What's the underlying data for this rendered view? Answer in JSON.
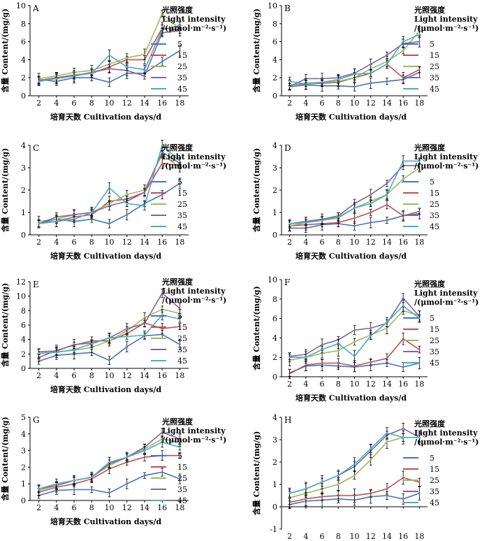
{
  "chart_data": [
    {
      "type": "line",
      "panel_label": "A",
      "ylabel": "含量 Content/(mg/g)",
      "xlabel": "培育天数 Cultivation days/d",
      "legend_title": [
        "光照强度",
        "Light intensity",
        "/(μmol·m⁻²·s⁻¹)"
      ],
      "x": [
        2,
        4,
        6,
        8,
        10,
        12,
        14,
        16,
        18
      ],
      "xlim": [
        1,
        19
      ],
      "ylim": [
        0,
        10
      ],
      "yticks": [
        0,
        2,
        4,
        6,
        8,
        10
      ],
      "series": [
        {
          "name": "5",
          "color": "#4472C4",
          "values": [
            1.8,
            1.6,
            2.0,
            2.0,
            1.5,
            2.5,
            2.5,
            3.8,
            5.0
          ]
        },
        {
          "name": "15",
          "color": "#C0504D",
          "values": [
            1.7,
            2.0,
            2.3,
            2.5,
            3.2,
            4.0,
            4.0,
            7.5,
            7.3
          ]
        },
        {
          "name": "25",
          "color": "#9BBB59",
          "values": [
            1.9,
            2.2,
            2.6,
            2.8,
            3.5,
            4.2,
            4.6,
            9.1,
            7.4
          ]
        },
        {
          "name": "35",
          "color": "#8064A2",
          "values": [
            1.7,
            1.9,
            2.2,
            2.6,
            3.0,
            2.8,
            2.2,
            7.0,
            7.2
          ]
        },
        {
          "name": "45",
          "color": "#4BACC6",
          "values": [
            1.6,
            1.9,
            2.2,
            2.5,
            4.5,
            3.2,
            2.9,
            7.3,
            7.8
          ]
        }
      ]
    },
    {
      "type": "line",
      "panel_label": "B",
      "ylabel": "含量 Content/(mg/g)",
      "xlabel": "培育天数 Cultivation days/d",
      "legend_title": [
        "光照强度",
        "Light intensity",
        "/(μmol·m⁻²·s⁻¹)"
      ],
      "x": [
        2,
        4,
        6,
        8,
        10,
        12,
        14,
        16,
        18
      ],
      "xlim": [
        1,
        19
      ],
      "ylim": [
        0,
        10
      ],
      "yticks": [
        0,
        2,
        4,
        6,
        8,
        10
      ],
      "series": [
        {
          "name": "5",
          "color": "#4472C4",
          "values": [
            1.0,
            1.2,
            1.1,
            1.1,
            1.0,
            1.4,
            1.6,
            1.8,
            2.6
          ]
        },
        {
          "name": "15",
          "color": "#C0504D",
          "values": [
            1.2,
            1.3,
            1.4,
            1.5,
            2.0,
            2.5,
            3.5,
            2.0,
            2.9
          ]
        },
        {
          "name": "25",
          "color": "#9BBB59",
          "values": [
            1.2,
            1.4,
            1.5,
            1.6,
            2.0,
            3.0,
            3.8,
            5.0,
            7.2
          ]
        },
        {
          "name": "35",
          "color": "#8064A2",
          "values": [
            1.0,
            1.9,
            1.9,
            2.0,
            2.5,
            3.5,
            4.5,
            5.8,
            6.0
          ]
        },
        {
          "name": "45",
          "color": "#4BACC6",
          "values": [
            1.6,
            1.3,
            1.5,
            1.8,
            2.4,
            2.5,
            3.5,
            6.0,
            6.8
          ]
        }
      ]
    },
    {
      "type": "line",
      "panel_label": "C",
      "ylabel": "含量 Content/(mg/g)",
      "xlabel": "培育天数 Cultivation days/d",
      "legend_title": [
        "光照强度",
        "Light intensity",
        "/(μmol·m⁻²·s⁻¹)"
      ],
      "x": [
        2,
        4,
        6,
        8,
        10,
        12,
        14,
        16,
        18
      ],
      "xlim": [
        1,
        19
      ],
      "ylim": [
        0,
        4
      ],
      "yticks": [
        0,
        1,
        2,
        3,
        4
      ],
      "series": [
        {
          "name": "5",
          "color": "#4472C4",
          "values": [
            0.5,
            0.7,
            0.6,
            0.7,
            0.5,
            0.9,
            1.4,
            1.8,
            2.3
          ]
        },
        {
          "name": "15",
          "color": "#C0504D",
          "values": [
            0.5,
            0.6,
            0.8,
            0.9,
            1.5,
            1.6,
            1.9,
            3.2,
            3.1
          ]
        },
        {
          "name": "25",
          "color": "#9BBB59",
          "values": [
            0.6,
            0.7,
            0.9,
            1.0,
            1.4,
            1.8,
            2.0,
            3.6,
            3.0
          ]
        },
        {
          "name": "35",
          "color": "#8064A2",
          "values": [
            0.5,
            0.8,
            0.9,
            1.0,
            1.3,
            1.5,
            1.9,
            3.7,
            3.2
          ]
        },
        {
          "name": "45",
          "color": "#4BACC6",
          "values": [
            0.5,
            0.6,
            0.7,
            1.0,
            2.1,
            1.4,
            1.3,
            4.0,
            3.3
          ]
        }
      ]
    },
    {
      "type": "line",
      "panel_label": "D",
      "ylabel": "含量 Content/(mg/g)",
      "xlabel": "培育天数 Cultivation days/d",
      "legend_title": [
        "光照强度",
        "Light intensity",
        "/(μmol·m⁻²·s⁻¹)"
      ],
      "x": [
        2,
        4,
        6,
        8,
        10,
        12,
        14,
        16,
        18
      ],
      "xlim": [
        1,
        19
      ],
      "ylim": [
        0,
        4
      ],
      "yticks": [
        0,
        1,
        2,
        3,
        4
      ],
      "series": [
        {
          "name": "5",
          "color": "#4472C4",
          "values": [
            0.3,
            0.3,
            0.45,
            0.5,
            0.4,
            0.55,
            0.65,
            0.85,
            0.95
          ]
        },
        {
          "name": "15",
          "color": "#C0504D",
          "values": [
            0.4,
            0.45,
            0.5,
            0.55,
            0.75,
            1.0,
            1.35,
            0.85,
            1.05
          ]
        },
        {
          "name": "25",
          "color": "#9BBB59",
          "values": [
            0.4,
            0.55,
            0.65,
            0.75,
            1.2,
            1.5,
            1.8,
            2.5,
            3.0
          ]
        },
        {
          "name": "35",
          "color": "#8064A2",
          "values": [
            0.5,
            0.6,
            0.7,
            0.85,
            1.4,
            1.8,
            2.3,
            3.1,
            3.1
          ]
        },
        {
          "name": "45",
          "color": "#4BACC6",
          "values": [
            0.5,
            0.55,
            0.65,
            0.8,
            1.2,
            1.4,
            1.8,
            3.3,
            3.3
          ]
        }
      ]
    },
    {
      "type": "line",
      "panel_label": "E",
      "ylabel": "含量 Content/(mg/g)",
      "xlabel": "培育天数 Cultivation days/d",
      "legend_title": [
        "光照强度",
        "Light intensity",
        "/(μmol·m⁻²·s⁻¹)"
      ],
      "x": [
        2,
        4,
        6,
        8,
        10,
        12,
        14,
        16,
        18
      ],
      "xlim": [
        1,
        19
      ],
      "ylim": [
        0,
        12
      ],
      "yticks": [
        0,
        2,
        4,
        6,
        8,
        10,
        12
      ],
      "series": [
        {
          "name": "5",
          "color": "#4472C4",
          "values": [
            1.0,
            1.8,
            2.0,
            2.2,
            1.1,
            3.0,
            4.5,
            4.7,
            3.3
          ]
        },
        {
          "name": "15",
          "color": "#C0504D",
          "values": [
            1.5,
            2.5,
            3.2,
            3.8,
            3.8,
            4.8,
            6.3,
            5.5,
            5.8
          ]
        },
        {
          "name": "25",
          "color": "#9BBB59",
          "values": [
            2.0,
            2.3,
            2.5,
            2.9,
            3.8,
            5.2,
            7.0,
            8.2,
            7.6
          ]
        },
        {
          "name": "35",
          "color": "#8064A2",
          "values": [
            2.3,
            2.4,
            3.3,
            3.5,
            4.2,
            5.5,
            6.2,
            10.4,
            8.3
          ]
        },
        {
          "name": "45",
          "color": "#4BACC6",
          "values": [
            2.1,
            2.2,
            2.6,
            3.4,
            4.2,
            4.4,
            4.6,
            7.4,
            6.8
          ]
        }
      ]
    },
    {
      "type": "line",
      "panel_label": "F",
      "ylabel": "含量 Content/(mg/g)",
      "xlabel": "培育天数 Cultivation days/d",
      "legend_title": [
        "光照强度",
        "Light intensity",
        "/(μmol·m⁻²·s⁻¹)"
      ],
      "x": [
        2,
        4,
        6,
        8,
        10,
        12,
        14,
        16,
        18
      ],
      "xlim": [
        1,
        19
      ],
      "ylim": [
        0,
        10
      ],
      "yticks": [
        0,
        2,
        4,
        6,
        8,
        10
      ],
      "series": [
        {
          "name": "5",
          "color": "#4472C4",
          "values": [
            0.4,
            1.1,
            1.2,
            1.1,
            1.0,
            1.2,
            1.4,
            1.0,
            1.4
          ]
        },
        {
          "name": "15",
          "color": "#C0504D",
          "values": [
            0.3,
            1.2,
            1.4,
            1.4,
            1.1,
            1.5,
            1.9,
            3.9,
            2.8
          ]
        },
        {
          "name": "25",
          "color": "#9BBB59",
          "values": [
            1.7,
            2.0,
            2.4,
            2.7,
            3.6,
            4.3,
            5.0,
            6.8,
            6.3
          ]
        },
        {
          "name": "35",
          "color": "#8064A2",
          "values": [
            2.1,
            2.3,
            3.3,
            3.8,
            4.8,
            5.0,
            5.5,
            8.1,
            6.2
          ]
        },
        {
          "name": "45",
          "color": "#4BACC6",
          "values": [
            2.0,
            2.0,
            2.8,
            3.4,
            2.1,
            4.2,
            5.6,
            7.3,
            6.0
          ]
        }
      ]
    },
    {
      "type": "line",
      "panel_label": "G",
      "ylabel": "含量 Content/(mg/g)",
      "xlabel": "培育天数 Cultivation days/d",
      "legend_title": [
        "光照强度",
        "Light intensity",
        "/(μmol·m⁻²·s⁻¹)"
      ],
      "x": [
        2,
        4,
        6,
        8,
        10,
        12,
        14,
        16,
        18
      ],
      "xlim": [
        1,
        19
      ],
      "ylim": [
        0,
        5
      ],
      "yticks": [
        0,
        1,
        2,
        3,
        4,
        5
      ],
      "series": [
        {
          "name": "5",
          "color": "#4472C4",
          "values": [
            0.3,
            0.6,
            0.65,
            0.65,
            0.45,
            1.0,
            1.5,
            1.7,
            1.3
          ]
        },
        {
          "name": "15",
          "color": "#C0504D",
          "values": [
            0.5,
            0.8,
            1.0,
            1.3,
            1.9,
            2.3,
            2.6,
            2.7,
            2.7
          ]
        },
        {
          "name": "25",
          "color": "#9BBB59",
          "values": [
            0.6,
            0.9,
            1.2,
            1.4,
            2.1,
            2.6,
            3.1,
            3.7,
            3.5
          ]
        },
        {
          "name": "35",
          "color": "#8064A2",
          "values": [
            0.7,
            0.9,
            1.2,
            1.4,
            2.2,
            2.6,
            3.2,
            4.1,
            3.7
          ]
        },
        {
          "name": "45",
          "color": "#4BACC6",
          "values": [
            0.7,
            1.0,
            1.2,
            1.4,
            2.3,
            2.6,
            3.0,
            3.5,
            3.2
          ]
        }
      ]
    },
    {
      "type": "line",
      "panel_label": "H",
      "ylabel": "含量 Content/(mg/g)",
      "xlabel": "培育天数 Cultivation days/d",
      "legend_title": [
        "光照强度",
        "Light intensity",
        "/(μmol·m⁻²·s⁻¹)"
      ],
      "x": [
        2,
        4,
        6,
        8,
        10,
        12,
        14,
        16,
        18
      ],
      "xlim": [
        1,
        19
      ],
      "ylim": [
        -1,
        4
      ],
      "yticks": [
        -1,
        0,
        1,
        2,
        3,
        4
      ],
      "series": [
        {
          "name": "5",
          "color": "#4472C4",
          "values": [
            0.1,
            0.25,
            0.3,
            0.35,
            0.3,
            0.45,
            0.5,
            0.35,
            0.6
          ]
        },
        {
          "name": "15",
          "color": "#C0504D",
          "values": [
            0.2,
            0.35,
            0.45,
            0.5,
            0.5,
            0.6,
            0.8,
            1.3,
            1.1
          ]
        },
        {
          "name": "25",
          "color": "#9BBB59",
          "values": [
            0.4,
            0.6,
            0.8,
            1.0,
            1.4,
            2.1,
            2.9,
            3.1,
            3.1
          ]
        },
        {
          "name": "35",
          "color": "#8064A2",
          "values": [
            0.6,
            0.8,
            1.1,
            1.4,
            1.8,
            2.5,
            3.2,
            3.5,
            3.1
          ]
        },
        {
          "name": "45",
          "color": "#4BACC6",
          "values": [
            0.6,
            0.8,
            1.1,
            1.4,
            1.9,
            2.6,
            3.3,
            3.1,
            3.1
          ]
        }
      ]
    }
  ]
}
